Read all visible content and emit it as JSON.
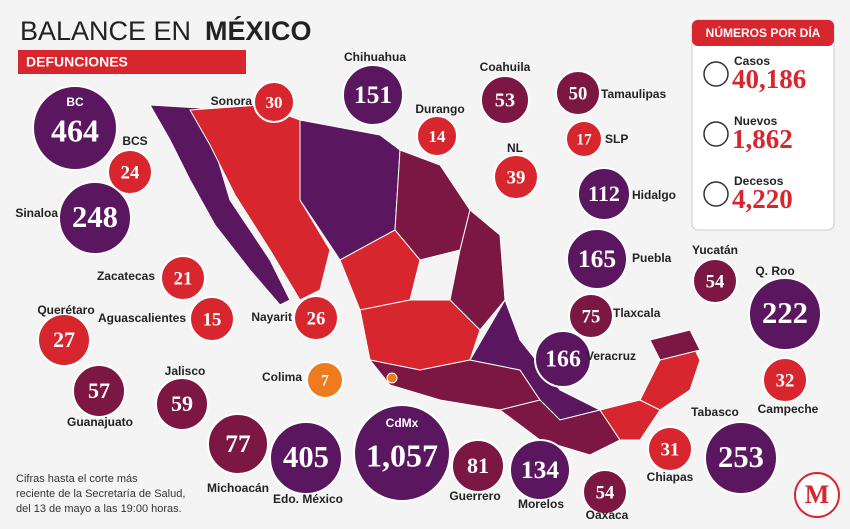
{
  "header": {
    "title_regular": "BALANCE EN",
    "title_bold": "MÉXICO",
    "subtitle": "DEFUNCIONES"
  },
  "states": [
    {
      "name": "BC",
      "value": "464",
      "color": "#5a1760"
    },
    {
      "name": "BCS",
      "value": "24",
      "color": "#d8262e"
    },
    {
      "name": "Sinaloa",
      "value": "248",
      "color": "#5a1760"
    },
    {
      "name": "Zacatecas",
      "value": "21",
      "color": "#d8262e"
    },
    {
      "name": "Aguascalientes",
      "value": "15",
      "color": "#d8262e"
    },
    {
      "name": "Querétaro",
      "value": "27",
      "color": "#d8262e"
    },
    {
      "name": "Guanajuato",
      "value": "57",
      "color": "#7c1744"
    },
    {
      "name": "Jalisco",
      "value": "59",
      "color": "#7c1744"
    },
    {
      "name": "Colima",
      "value": "7",
      "color": "#f07b1e"
    },
    {
      "name": "Michoacán",
      "value": "77",
      "color": "#7c1744"
    },
    {
      "name": "Edo. México",
      "value": "405",
      "color": "#5a1760"
    },
    {
      "name": "CdMx",
      "value": "1,057",
      "color": "#5a1760"
    },
    {
      "name": "Guerrero",
      "value": "81",
      "color": "#7c1744"
    },
    {
      "name": "Morelos",
      "value": "134",
      "color": "#5a1760"
    },
    {
      "name": "Oaxaca",
      "value": "54",
      "color": "#7c1744"
    },
    {
      "name": "Chiapas",
      "value": "31",
      "color": "#d8262e"
    },
    {
      "name": "Tabasco",
      "value": "253",
      "color": "#5a1760"
    },
    {
      "name": "Campeche",
      "value": "32",
      "color": "#d8262e"
    },
    {
      "name": "Q. Roo",
      "value": "222",
      "color": "#5a1760"
    },
    {
      "name": "Yucatán",
      "value": "54",
      "color": "#7c1744"
    },
    {
      "name": "Veracruz",
      "value": "166",
      "color": "#5a1760"
    },
    {
      "name": "Tlaxcala",
      "value": "75",
      "color": "#7c1744"
    },
    {
      "name": "Puebla",
      "value": "165",
      "color": "#5a1760"
    },
    {
      "name": "Hidalgo",
      "value": "112",
      "color": "#5a1760"
    },
    {
      "name": "SLP",
      "value": "17",
      "color": "#d8262e"
    },
    {
      "name": "Tamaulipas",
      "value": "50",
      "color": "#7c1744"
    },
    {
      "name": "NL",
      "value": "39",
      "color": "#d8262e"
    },
    {
      "name": "Coahuila",
      "value": "53",
      "color": "#7c1744"
    },
    {
      "name": "Durango",
      "value": "14",
      "color": "#d8262e"
    },
    {
      "name": "Chihuahua",
      "value": "151",
      "color": "#5a1760"
    },
    {
      "name": "Sonora",
      "value": "30",
      "color": "#d8262e"
    },
    {
      "name": "Nayarit",
      "value": "26",
      "color": "#d8262e"
    }
  ],
  "panel": {
    "title": "NÚMEROS POR DÍA",
    "items": [
      {
        "label": "Casos",
        "value": "40,186"
      },
      {
        "label": "Nuevos",
        "value": "1,862"
      },
      {
        "label": "Decesos",
        "value": "4,220"
      }
    ]
  },
  "footnote": [
    "Cifras hasta el corte más",
    "reciente de la Secretaría de Salud,",
    "del 13 de mayo a las 19:00 horas."
  ],
  "logo": "M"
}
